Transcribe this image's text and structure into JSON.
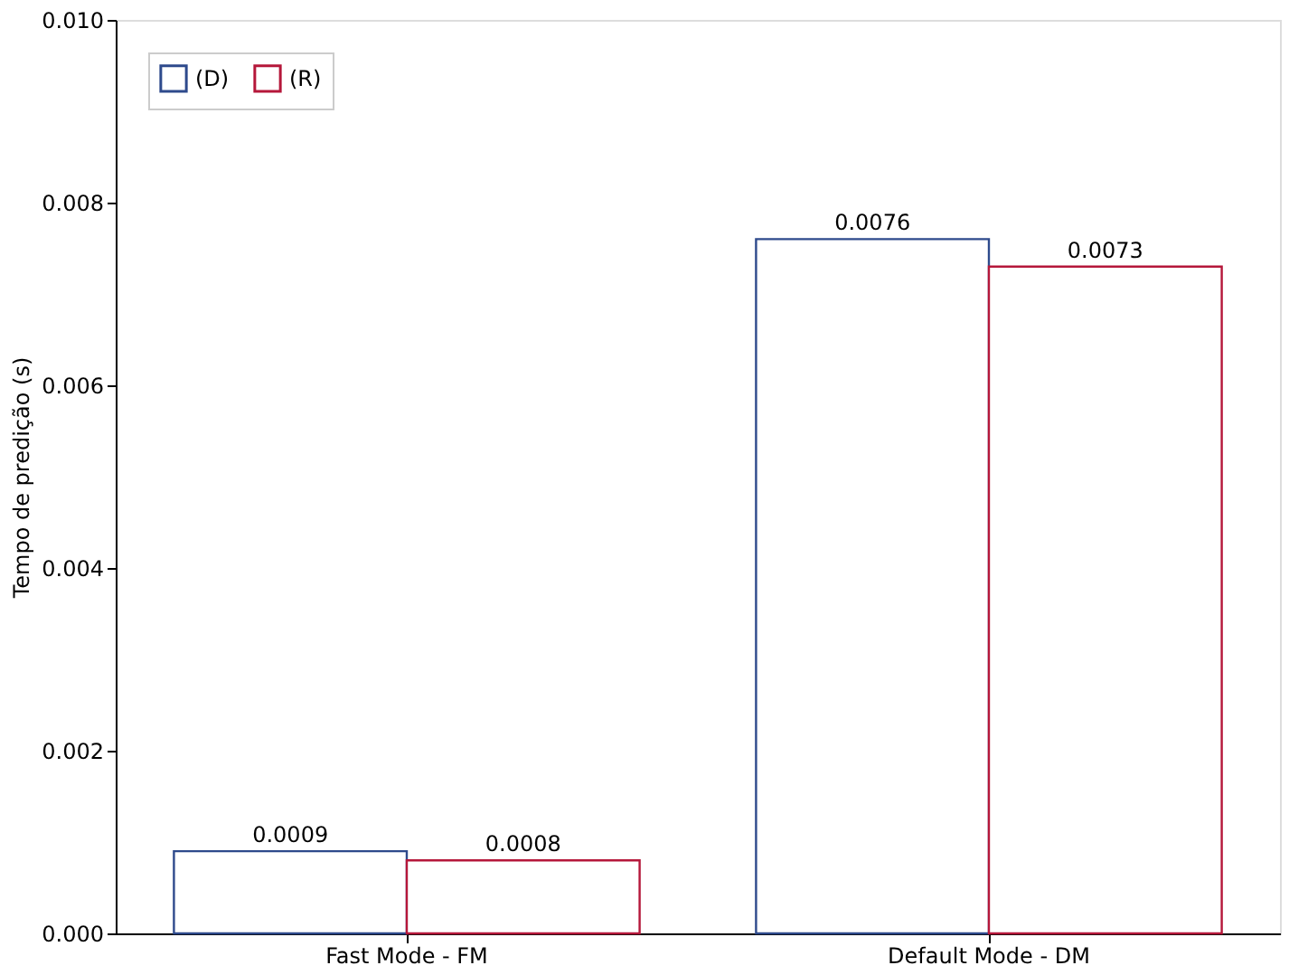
{
  "chart_data": {
    "type": "bar",
    "ylabel": "Tempo de predição (s)",
    "categories": [
      "Fast Mode - FM",
      "Default Mode - DM"
    ],
    "series": [
      {
        "name": "(D)",
        "color": "#2e4a8c",
        "values": [
          0.0009,
          0.0076
        ]
      },
      {
        "name": "(R)",
        "color": "#b5173a",
        "values": [
          0.0008,
          0.0073
        ]
      }
    ],
    "ylim": [
      0,
      0.01
    ],
    "yticks": [
      {
        "value": 0,
        "label": "0.000"
      },
      {
        "value": 0.002,
        "label": "0.002"
      },
      {
        "value": 0.004,
        "label": "0.004"
      },
      {
        "value": 0.006,
        "label": "0.006"
      },
      {
        "value": 0.008,
        "label": "0.008"
      },
      {
        "value": 0.01,
        "label": "0.010"
      }
    ],
    "data_labels": true,
    "grid": false,
    "legend": "top left"
  }
}
